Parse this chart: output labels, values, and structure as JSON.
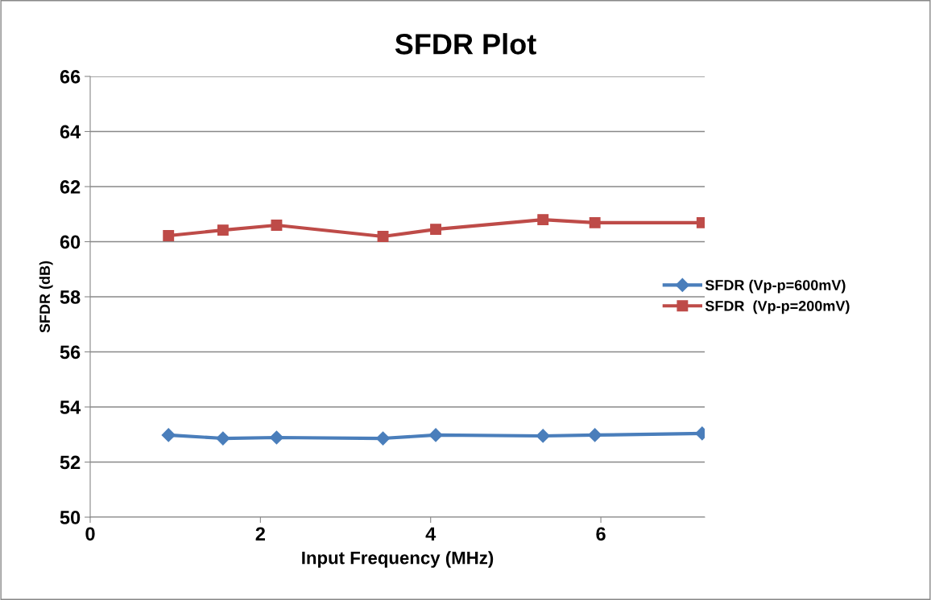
{
  "chart_data": {
    "type": "line",
    "title": "SFDR Plot",
    "xlabel": "Input Frequency (MHz)",
    "ylabel": "SFDR (dB)",
    "x": [
      0.92,
      1.56,
      2.19,
      3.44,
      4.06,
      5.32,
      5.93,
      7.19
    ],
    "series": [
      {
        "name": "SFDR (Vp-p=600mV)",
        "color": "#4a7ebb",
        "marker": "diamond",
        "values": [
          52.98,
          52.86,
          52.89,
          52.86,
          52.98,
          52.95,
          52.98,
          53.04
        ]
      },
      {
        "name": "SFDR  (Vp-p=200mV)",
        "color": "#be4b48",
        "marker": "square",
        "values": [
          60.22,
          60.42,
          60.6,
          60.19,
          60.45,
          60.8,
          60.69,
          60.69
        ]
      }
    ],
    "xlim": [
      0,
      7.22
    ],
    "xticks": [
      0,
      2,
      4,
      6
    ],
    "ylim": [
      50,
      66
    ],
    "yticks": [
      50,
      52,
      54,
      56,
      58,
      60,
      62,
      64,
      66
    ],
    "grid": "y",
    "legend": "right",
    "line_style": "solid"
  }
}
